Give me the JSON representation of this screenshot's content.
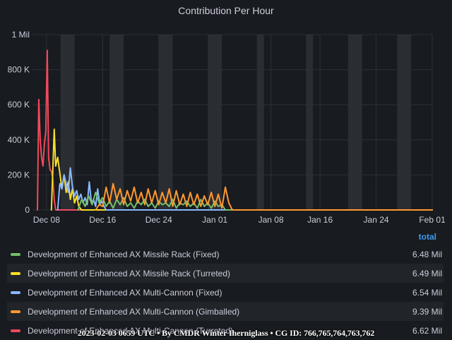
{
  "panel": {
    "title": "Contribution Per Hour"
  },
  "legend": {
    "header": "total",
    "items": [
      {
        "name": "Development of Enhanced AX Missile Rack (Fixed)",
        "value": "6.48 Mil",
        "color": "#73bf69"
      },
      {
        "name": "Development of Enhanced AX Missile Rack (Turreted)",
        "value": "6.49 Mil",
        "color": "#fade2a"
      },
      {
        "name": "Development of Enhanced AX Multi-Cannon (Fixed)",
        "value": "6.54 Mil",
        "color": "#8ab8ff"
      },
      {
        "name": "Development of Enhanced AX Multi-Cannon (Gimballed)",
        "value": "9.39 Mil",
        "color": "#ff9830"
      },
      {
        "name": "Development of Enhanced AX Multi-Cannon (Turreted)",
        "value": "6.62 Mil",
        "color": "#f2495c"
      }
    ]
  },
  "footer": {
    "text": "2023-02-03 0659 UTC • By CMDR Winter Iherniglass • CG ID: 766,765,764,763,762"
  },
  "chart_data": {
    "type": "line",
    "title": "Contribution Per Hour",
    "x_tick_labels": [
      "Dec 08",
      "Dec 16",
      "Dec 24",
      "Jan 01",
      "Jan 08",
      "Jan 16",
      "Jan 24",
      "Feb 01"
    ],
    "y_tick_labels": [
      "0",
      "200 K",
      "400 K",
      "600 K",
      "800 K",
      "1 Mil"
    ],
    "x_unit": "days relative to Dec 08",
    "xlim": [
      -2,
      55
    ],
    "ylim": [
      0,
      1000000
    ],
    "x_tick_days": [
      0,
      8,
      16,
      24,
      32,
      39,
      47,
      55
    ],
    "shaded_days": [
      [
        2,
        4
      ],
      [
        9,
        11
      ],
      [
        16,
        18
      ],
      [
        23,
        25
      ],
      [
        30,
        31
      ],
      [
        37,
        38
      ],
      [
        43,
        45
      ],
      [
        50,
        52
      ]
    ],
    "series": [
      {
        "name": "Development of Enhanced AX Multi-Cannon (Turreted)",
        "color": "#f2495c",
        "x": [
          -1.3,
          -1.1,
          -0.9,
          -0.7,
          -0.5,
          -0.3,
          -0.1,
          0.1,
          0.3,
          0.5,
          0.7,
          0.9,
          1.1,
          1.3,
          1.6,
          2.0,
          2.5,
          3.0,
          55
        ],
        "y": [
          0,
          630000,
          400000,
          300000,
          250000,
          380000,
          450000,
          910000,
          300000,
          230000,
          220000,
          180000,
          60000,
          0,
          0,
          0,
          0,
          0,
          0
        ]
      },
      {
        "name": "Development of Enhanced AX Missile Rack (Turreted)",
        "color": "#fade2a",
        "x": [
          0.7,
          0.9,
          1.1,
          1.3,
          1.6,
          1.9,
          2.2,
          2.5,
          2.8,
          3.1,
          3.4,
          3.7,
          4.0,
          4.3,
          4.6,
          5.0,
          6.0,
          55
        ],
        "y": [
          0,
          230000,
          460000,
          250000,
          300000,
          210000,
          120000,
          200000,
          100000,
          160000,
          60000,
          120000,
          40000,
          80000,
          20000,
          0,
          0,
          0
        ]
      },
      {
        "name": "Development of Enhanced AX Multi-Cannon (Fixed)",
        "color": "#8ab8ff",
        "x": [
          1.6,
          1.9,
          2.2,
          2.5,
          2.8,
          3.1,
          3.4,
          3.7,
          4.0,
          4.3,
          4.6,
          4.9,
          5.2,
          5.5,
          5.8,
          6.1,
          6.4,
          6.7,
          7.0,
          7.3,
          7.6,
          7.9,
          8.2,
          8.5,
          9.0,
          55
        ],
        "y": [
          0,
          150000,
          120000,
          200000,
          150000,
          100000,
          240000,
          130000,
          80000,
          110000,
          60000,
          90000,
          40000,
          70000,
          30000,
          160000,
          40000,
          60000,
          20000,
          120000,
          30000,
          50000,
          20000,
          0,
          0,
          0
        ]
      },
      {
        "name": "Development of Enhanced AX Missile Rack (Fixed)",
        "color": "#73bf69",
        "x": [
          4.5,
          5.0,
          5.5,
          6.0,
          6.5,
          7.0,
          7.5,
          8.0,
          8.5,
          9.0,
          9.5,
          10.0,
          10.5,
          11.0,
          11.5,
          12.0,
          12.5,
          13.0,
          13.5,
          14.0,
          14.5,
          15.0,
          15.5,
          16.0,
          16.5,
          17.0,
          17.5,
          18.0,
          18.5,
          19.0,
          19.5,
          20.0,
          20.5,
          21.0,
          21.5,
          22.0,
          22.5,
          23.0,
          23.5,
          24.0,
          24.5,
          25.0,
          25.5,
          26.0,
          55
        ],
        "y": [
          0,
          60000,
          20000,
          80000,
          30000,
          100000,
          40000,
          70000,
          20000,
          50000,
          10000,
          60000,
          30000,
          70000,
          20000,
          40000,
          10000,
          50000,
          30000,
          60000,
          20000,
          40000,
          10000,
          50000,
          30000,
          40000,
          20000,
          60000,
          10000,
          40000,
          30000,
          50000,
          20000,
          40000,
          10000,
          60000,
          20000,
          40000,
          10000,
          50000,
          20000,
          30000,
          0,
          0,
          0
        ]
      },
      {
        "name": "Development of Enhanced AX Multi-Cannon (Gimballed)",
        "color": "#ff9830",
        "x": [
          7.0,
          7.5,
          8.0,
          8.5,
          9.0,
          9.5,
          10.0,
          10.5,
          11.0,
          11.5,
          12.0,
          12.5,
          13.0,
          13.5,
          14.0,
          14.5,
          15.0,
          15.5,
          16.0,
          16.5,
          17.0,
          17.5,
          18.0,
          18.5,
          19.0,
          19.5,
          20.0,
          20.5,
          21.0,
          21.5,
          22.0,
          22.5,
          23.0,
          23.5,
          24.0,
          24.5,
          25.0,
          25.5,
          26.0,
          26.5,
          55
        ],
        "y": [
          0,
          30000,
          20000,
          130000,
          40000,
          150000,
          60000,
          120000,
          30000,
          110000,
          50000,
          130000,
          40000,
          100000,
          30000,
          120000,
          40000,
          110000,
          30000,
          100000,
          40000,
          120000,
          20000,
          110000,
          30000,
          90000,
          20000,
          100000,
          30000,
          90000,
          20000,
          80000,
          30000,
          100000,
          20000,
          90000,
          10000,
          130000,
          40000,
          0,
          0
        ]
      }
    ]
  }
}
